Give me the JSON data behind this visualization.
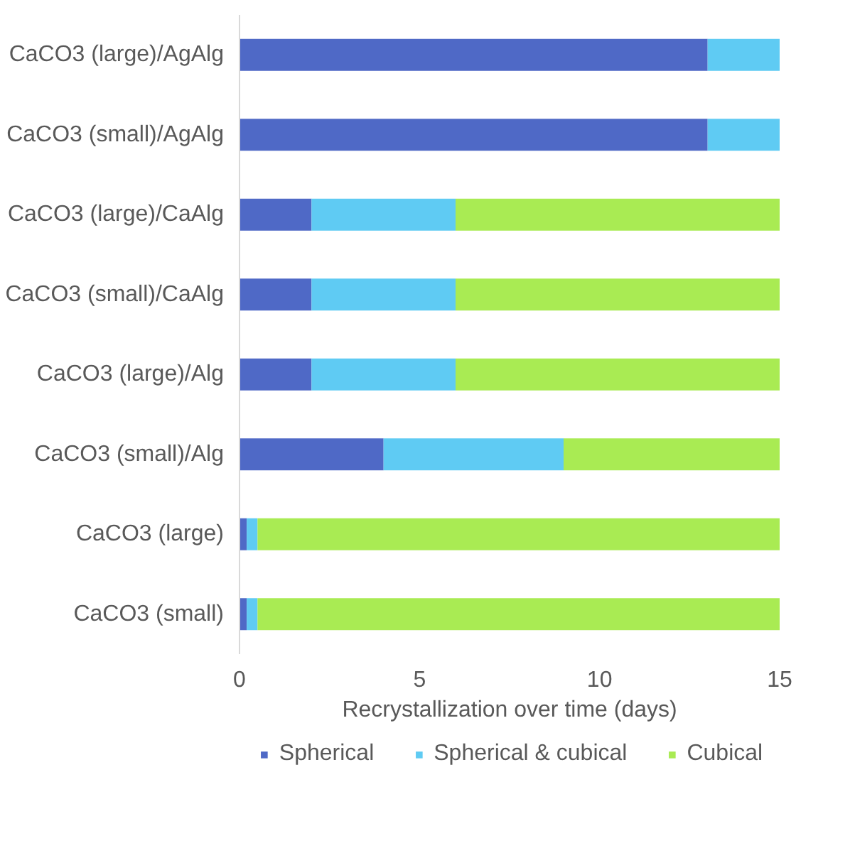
{
  "chart_data": {
    "type": "bar",
    "orientation": "horizontal",
    "stacked": true,
    "categories": [
      "CaCO3 (large)/AgAlg",
      "CaCO3 (small)/AgAlg",
      "CaCO3 (large)/CaAlg",
      "CaCO3 (small)/CaAlg",
      "CaCO3 (large)/Alg",
      "CaCO3 (small)/Alg",
      "CaCO3 (large)",
      "CaCO3 (small)"
    ],
    "series": [
      {
        "name": "Spherical",
        "color": "#4f69c6",
        "values": [
          13,
          13,
          2,
          2,
          2,
          4,
          0.2,
          0.2
        ]
      },
      {
        "name": "Spherical & cubical",
        "color": "#5fcbf3",
        "values": [
          2,
          2,
          4,
          4,
          4,
          5,
          0.3,
          0.3
        ]
      },
      {
        "name": "Cubical",
        "color": "#a9eb53",
        "values": [
          null,
          null,
          9,
          9,
          9,
          6,
          14.5,
          14.5
        ]
      }
    ],
    "xlabel": "Recrystallization over time (days)",
    "xlim": [
      0,
      15
    ],
    "xticks": [
      0,
      5,
      10,
      15
    ],
    "grid": false,
    "legend": "bottom"
  }
}
